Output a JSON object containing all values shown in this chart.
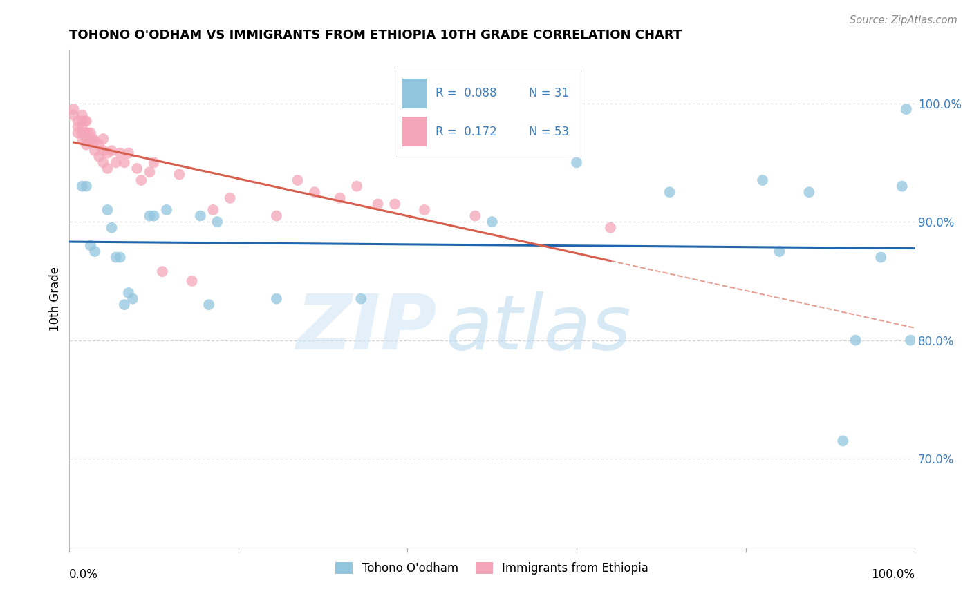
{
  "title": "TOHONO O'ODHAM VS IMMIGRANTS FROM ETHIOPIA 10TH GRADE CORRELATION CHART",
  "source": "Source: ZipAtlas.com",
  "ylabel": "10th Grade",
  "ytick_labels": [
    "70.0%",
    "80.0%",
    "90.0%",
    "100.0%"
  ],
  "ytick_values": [
    0.7,
    0.8,
    0.9,
    1.0
  ],
  "xlim": [
    0.0,
    1.0
  ],
  "ylim": [
    0.625,
    1.045
  ],
  "blue_color": "#92c5de",
  "pink_color": "#f4a6b8",
  "blue_line_color": "#2166ac",
  "pink_line_color": "#d6604d",
  "watermark_zip": "ZIP",
  "watermark_atlas": "atlas",
  "grid_color": "#d0d0d0",
  "background_color": "#ffffff",
  "blue_scatter_x": [
    0.015,
    0.02,
    0.025,
    0.03,
    0.045,
    0.05,
    0.055,
    0.06,
    0.065,
    0.07,
    0.075,
    0.095,
    0.1,
    0.115,
    0.155,
    0.165,
    0.175,
    0.245,
    0.345,
    0.5,
    0.6,
    0.71,
    0.82,
    0.84,
    0.875,
    0.915,
    0.93,
    0.96,
    0.985,
    0.99,
    0.995
  ],
  "blue_scatter_y": [
    0.93,
    0.93,
    0.88,
    0.875,
    0.91,
    0.895,
    0.87,
    0.87,
    0.83,
    0.84,
    0.835,
    0.905,
    0.905,
    0.91,
    0.905,
    0.83,
    0.9,
    0.835,
    0.835,
    0.9,
    0.95,
    0.925,
    0.935,
    0.875,
    0.925,
    0.715,
    0.8,
    0.87,
    0.93,
    0.995,
    0.8
  ],
  "pink_scatter_x": [
    0.005,
    0.005,
    0.01,
    0.01,
    0.01,
    0.015,
    0.015,
    0.015,
    0.015,
    0.015,
    0.018,
    0.018,
    0.02,
    0.02,
    0.02,
    0.02,
    0.022,
    0.025,
    0.025,
    0.028,
    0.03,
    0.03,
    0.035,
    0.035,
    0.04,
    0.04,
    0.04,
    0.045,
    0.045,
    0.05,
    0.055,
    0.06,
    0.065,
    0.07,
    0.08,
    0.085,
    0.095,
    0.1,
    0.11,
    0.13,
    0.145,
    0.17,
    0.19,
    0.245,
    0.27,
    0.29,
    0.32,
    0.34,
    0.365,
    0.385,
    0.42,
    0.48,
    0.64
  ],
  "pink_scatter_y": [
    0.995,
    0.99,
    0.985,
    0.98,
    0.975,
    0.99,
    0.985,
    0.98,
    0.975,
    0.97,
    0.985,
    0.975,
    0.985,
    0.975,
    0.97,
    0.965,
    0.975,
    0.975,
    0.968,
    0.97,
    0.968,
    0.96,
    0.965,
    0.955,
    0.97,
    0.96,
    0.95,
    0.958,
    0.945,
    0.96,
    0.95,
    0.958,
    0.95,
    0.958,
    0.945,
    0.935,
    0.942,
    0.95,
    0.858,
    0.94,
    0.85,
    0.91,
    0.92,
    0.905,
    0.935,
    0.925,
    0.92,
    0.93,
    0.915,
    0.915,
    0.91,
    0.905,
    0.895
  ],
  "legend_r_blue": "R =  0.088",
  "legend_n_blue": "N = 31",
  "legend_r_pink": "R =  0.172",
  "legend_n_pink": "N = 53",
  "legend_text_color": "#3a7fc1"
}
